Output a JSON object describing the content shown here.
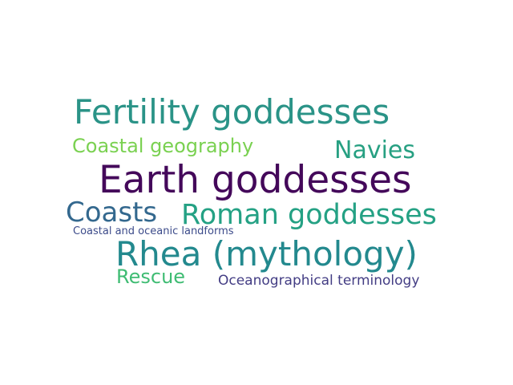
{
  "word_cloud": {
    "words": [
      {
        "text": "Fertility goddesses",
        "color": "#2a9387"
      },
      {
        "text": "Coastal geography",
        "color": "#7ad151"
      },
      {
        "text": "Navies",
        "color": "#27a082"
      },
      {
        "text": "Earth goddesses",
        "color": "#44085a"
      },
      {
        "text": "Coasts",
        "color": "#33688e"
      },
      {
        "text": "Roman goddesses",
        "color": "#24a184"
      },
      {
        "text": "Coastal and oceanic landforms",
        "color": "#3c4b8a"
      },
      {
        "text": "Rhea (mythology)",
        "color": "#23898e"
      },
      {
        "text": "Rescue",
        "color": "#3fbc73"
      },
      {
        "text": "Oceanographical terminology",
        "color": "#433d84"
      }
    ]
  }
}
